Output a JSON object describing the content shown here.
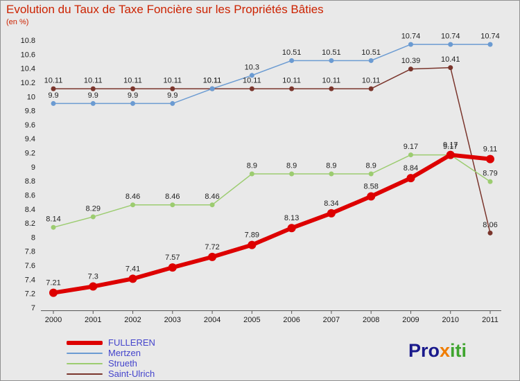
{
  "chart_data": {
    "type": "line",
    "title": "Evolution du Taux de Taxe Foncière sur les Propriétés Bâties",
    "subtitle": "(en %)",
    "x": [
      "2000",
      "2001",
      "2002",
      "2003",
      "2004",
      "2005",
      "2006",
      "2007",
      "2008",
      "2009",
      "2010",
      "2011"
    ],
    "ylim": [
      7,
      10.8
    ],
    "ytick_step": 0.2,
    "ytick_labels": [
      "7",
      "7.2",
      "7.4",
      "7.6",
      "7.8",
      "8",
      "8.2",
      "8.4",
      "8.6",
      "8.8",
      "9",
      "9.2",
      "9.4",
      "9.6",
      "9.8",
      "10",
      "10.2",
      "10.4",
      "10.6",
      "10.8"
    ],
    "grid": false,
    "legend_position": "bottom-left",
    "series": [
      {
        "name": "FULLEREN",
        "color": "#dd0000",
        "line_width": 6,
        "marker_radius": 6,
        "values": [
          7.21,
          7.3,
          7.41,
          7.57,
          7.72,
          7.89,
          8.13,
          8.34,
          8.58,
          8.84,
          9.17,
          9.11
        ]
      },
      {
        "name": "Mertzen",
        "color": "#6b9bd2",
        "line_width": 1.5,
        "marker_radius": 3.5,
        "values": [
          9.9,
          9.9,
          9.9,
          9.9,
          10.11,
          10.3,
          10.51,
          10.51,
          10.51,
          10.74,
          10.74,
          10.74
        ]
      },
      {
        "name": "Strueth",
        "color": "#9ccc70",
        "line_width": 1.5,
        "marker_radius": 3.5,
        "values": [
          8.14,
          8.29,
          8.46,
          8.46,
          8.46,
          8.9,
          8.9,
          8.9,
          8.9,
          9.17,
          9.17,
          8.79
        ]
      },
      {
        "name": "Saint-Ulrich",
        "color": "#7a352c",
        "line_width": 1.5,
        "marker_radius": 3.5,
        "values": [
          10.11,
          10.11,
          10.11,
          10.11,
          10.11,
          10.11,
          10.11,
          10.11,
          10.11,
          10.39,
          10.41,
          8.06
        ]
      }
    ]
  },
  "colors": {
    "background": "#e9e9e9",
    "title": "#cc2200",
    "axis_text": "#1a1a1a",
    "data_label": "#222222",
    "legend_text": "#4444cc"
  },
  "legend": {
    "items": [
      {
        "label": "FULLEREN",
        "color": "#dd0000",
        "thick": true
      },
      {
        "label": "Mertzen",
        "color": "#6b9bd2",
        "thick": false
      },
      {
        "label": "Strueth",
        "color": "#9ccc70",
        "thick": false
      },
      {
        "label": "Saint-Ulrich",
        "color": "#7a352c",
        "thick": false
      }
    ]
  },
  "logo": {
    "parts": [
      {
        "text": "Pro",
        "color": "#1a1a8c"
      },
      {
        "text": "x",
        "color": "#f07d00"
      },
      {
        "text": "iti",
        "color": "#3fa52f"
      }
    ]
  }
}
